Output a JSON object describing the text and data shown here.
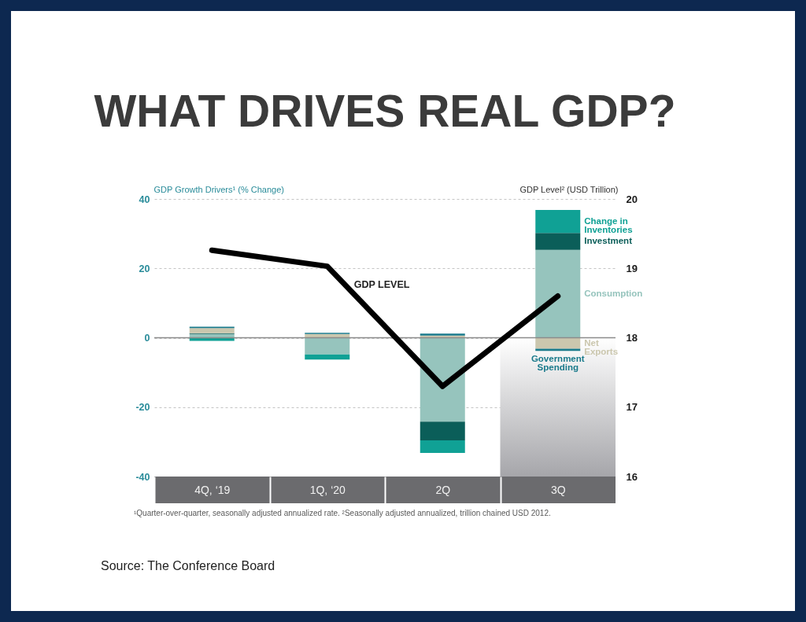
{
  "chart_data": {
    "type": "bar",
    "title": "WHAT DRIVES REAL GDP?",
    "ylabel": "GDP Growth Drivers¹ (% Change)",
    "y2label": "GDP Level² (USD Trillion)",
    "categories": [
      "4Q, ‘19",
      "1Q, ‘20",
      "2Q",
      "3Q"
    ],
    "series": [
      {
        "name": "Consumption",
        "color": "#96c4bd",
        "values": [
          1.1,
          -4.8,
          -24.2,
          25.3
        ]
      },
      {
        "name": "Investment",
        "color": "#0b5e59",
        "values": [
          0.2,
          null,
          -5.4,
          4.9
        ]
      },
      {
        "name": "Change in Inventories",
        "color": "#10a195",
        "values": [
          -0.9,
          -1.5,
          -3.6,
          6.6
        ]
      },
      {
        "name": "Net Exports",
        "color": "#cbc7ae",
        "values": [
          1.5,
          1.1,
          0.6,
          -3.2
        ]
      },
      {
        "name": "Government Spending",
        "color": "#1a7a8b",
        "values": [
          0.4,
          0.3,
          0.6,
          -0.6
        ]
      },
      {
        "name": "GDP LEVEL",
        "type": "line",
        "axis": "y2",
        "color": "#000000",
        "values": [
          19.26,
          19.03,
          17.3,
          18.6
        ]
      }
    ],
    "stacked": true,
    "ylim": [
      -40,
      40
    ],
    "yticks": [
      -40,
      -20,
      0,
      20,
      40
    ],
    "y2lim": [
      16,
      20
    ],
    "y2ticks": [
      16,
      17,
      18,
      19,
      20
    ],
    "grid": "y",
    "ref_lines": [
      {
        "axis": "y",
        "value": 0,
        "color": "#8c8c8c"
      }
    ],
    "bands": [
      {
        "axis": "x",
        "from": "3Q",
        "to": "3Q",
        "color": "#a6a6aa"
      }
    ],
    "annotations": [
      "¹Quarter-over-quarter, seasonally adjusted annualized rate. ²Seasonally adjusted annualized, trillion chained USD 2012.",
      "Source: The Conference Board"
    ]
  }
}
